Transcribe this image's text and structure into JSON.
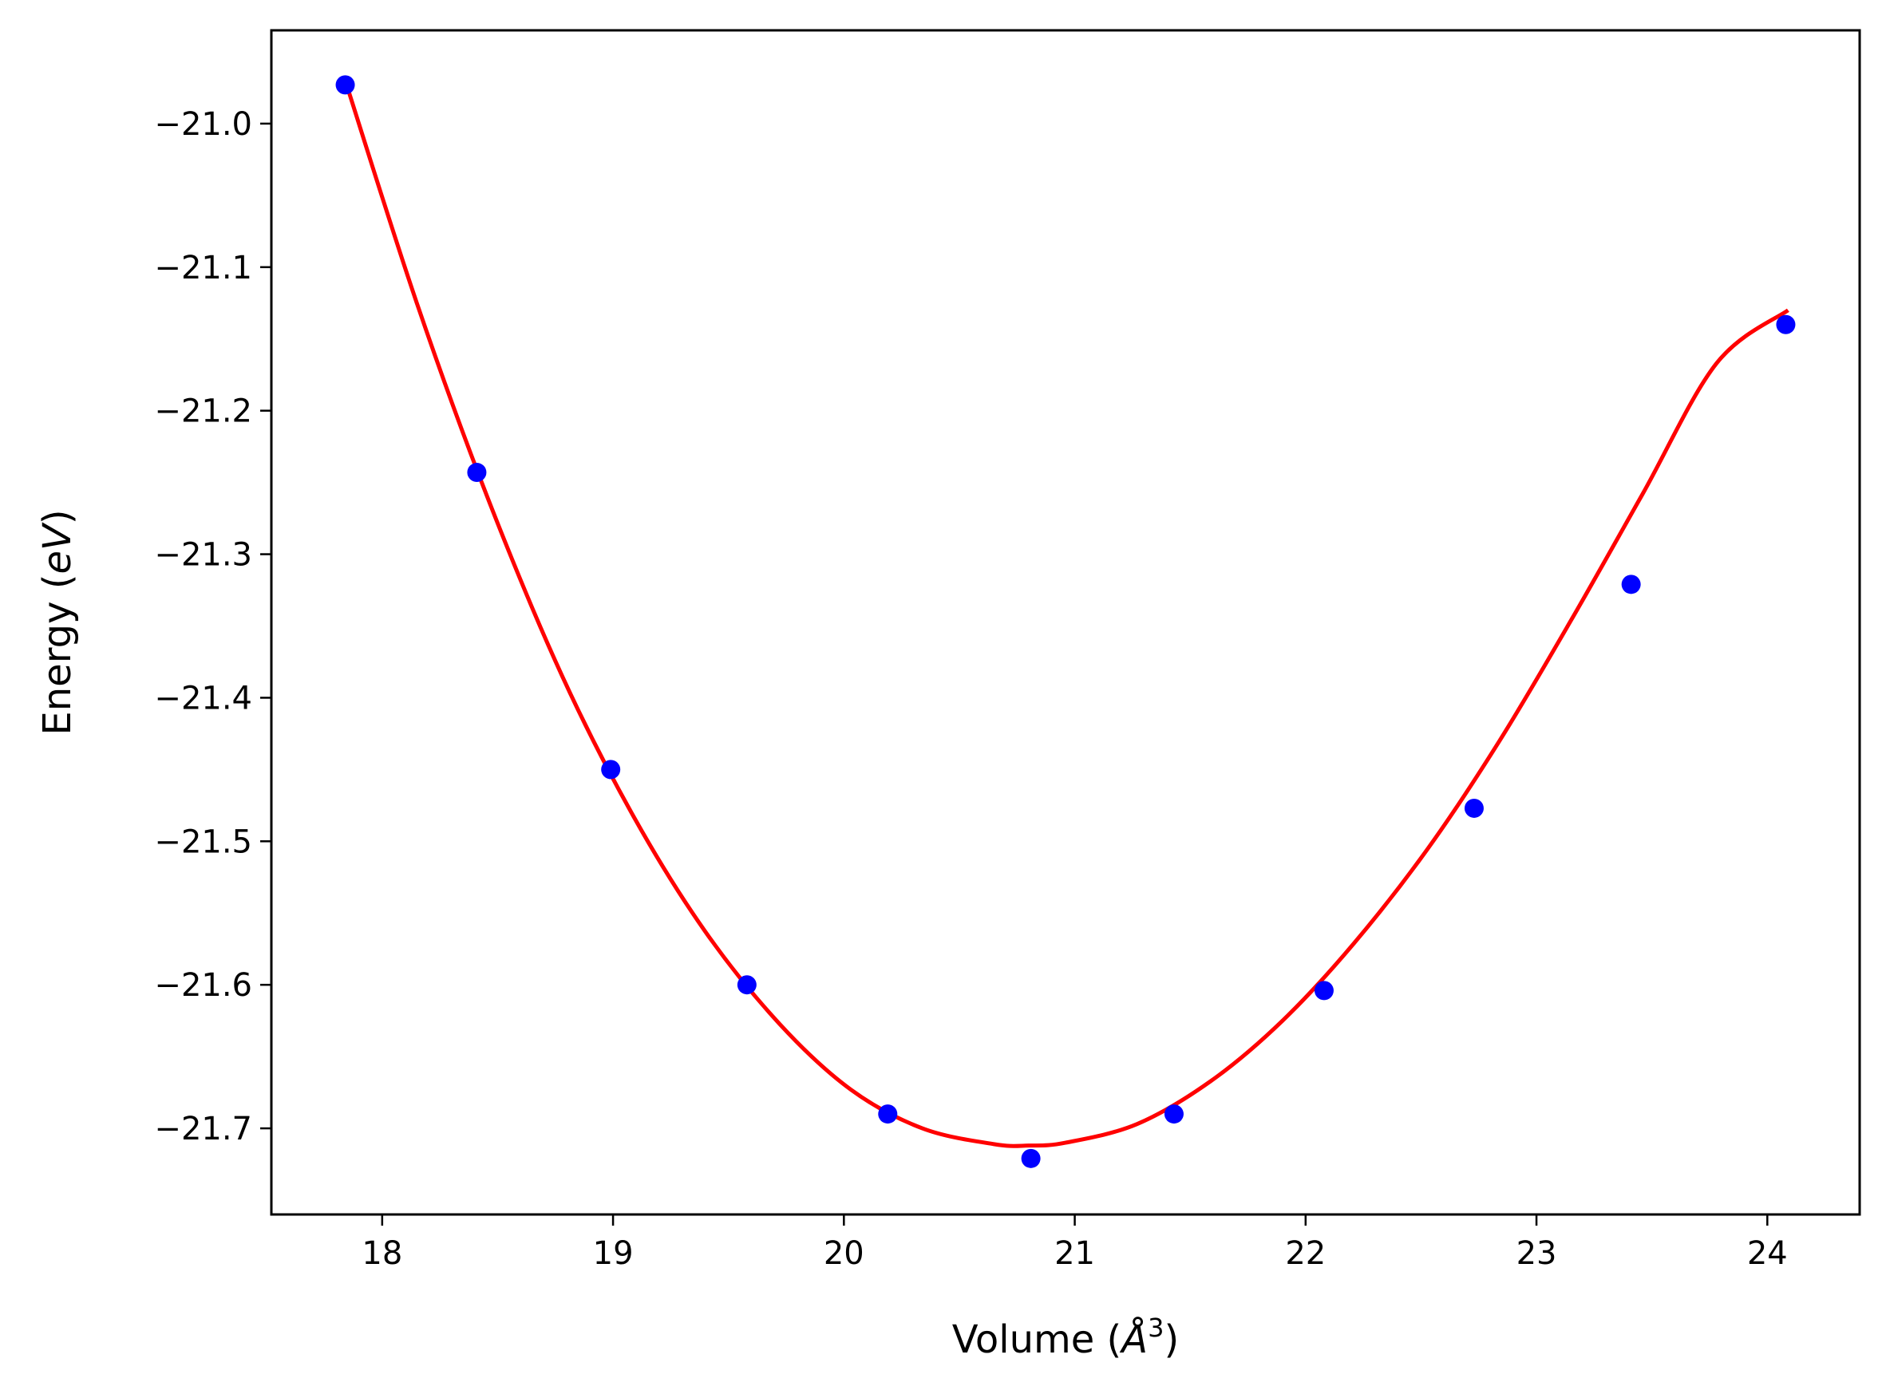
{
  "chart_data": {
    "type": "scatter",
    "xlabel": {
      "prefix": "Volume (",
      "unit": "Å",
      "exponent": "3",
      "suffix": ")"
    },
    "ylabel": {
      "prefix": "Energy (",
      "unit": "eV",
      "suffix": ")"
    },
    "xlim": [
      17.52,
      24.4
    ],
    "ylim": [
      -21.76,
      -20.935
    ],
    "xticks": [
      18,
      19,
      20,
      21,
      22,
      23,
      24
    ],
    "xtick_labels": [
      "18",
      "19",
      "20",
      "21",
      "22",
      "23",
      "24"
    ],
    "yticks": [
      -21.0,
      -21.1,
      -21.2,
      -21.3,
      -21.4,
      -21.5,
      -21.6,
      -21.7
    ],
    "ytick_labels": [
      "−21.0",
      "−21.1",
      "−21.2",
      "−21.3",
      "−21.4",
      "−21.5",
      "−21.6",
      "−21.7"
    ],
    "grid": false,
    "legend": "none",
    "series": [
      {
        "kind": "points",
        "color": "#0000ff",
        "x": [
          17.84,
          18.41,
          18.99,
          19.58,
          20.19,
          20.81,
          21.43,
          22.08,
          22.73,
          23.41,
          24.08
        ],
        "y": [
          -20.973,
          -21.243,
          -21.45,
          -21.6,
          -21.69,
          -21.721,
          -21.69,
          -21.604,
          -21.477,
          -21.321,
          -21.14
        ]
      },
      {
        "kind": "fit-curve",
        "color": "#ff0000",
        "x": [
          17.84,
          18.15,
          18.46,
          18.78,
          19.09,
          19.4,
          19.72,
          20.03,
          20.34,
          20.65,
          20.8,
          20.96,
          21.27,
          21.59,
          21.9,
          22.21,
          22.53,
          22.84,
          23.15,
          23.46,
          23.78,
          24.09
        ],
        "y": [
          -20.97,
          -21.125,
          -21.262,
          -21.385,
          -21.483,
          -21.563,
          -21.627,
          -21.673,
          -21.7,
          -21.711,
          -21.712,
          -21.71,
          -21.697,
          -21.667,
          -21.625,
          -21.571,
          -21.505,
          -21.43,
          -21.346,
          -21.258,
          -21.167,
          -21.13
        ]
      }
    ]
  }
}
